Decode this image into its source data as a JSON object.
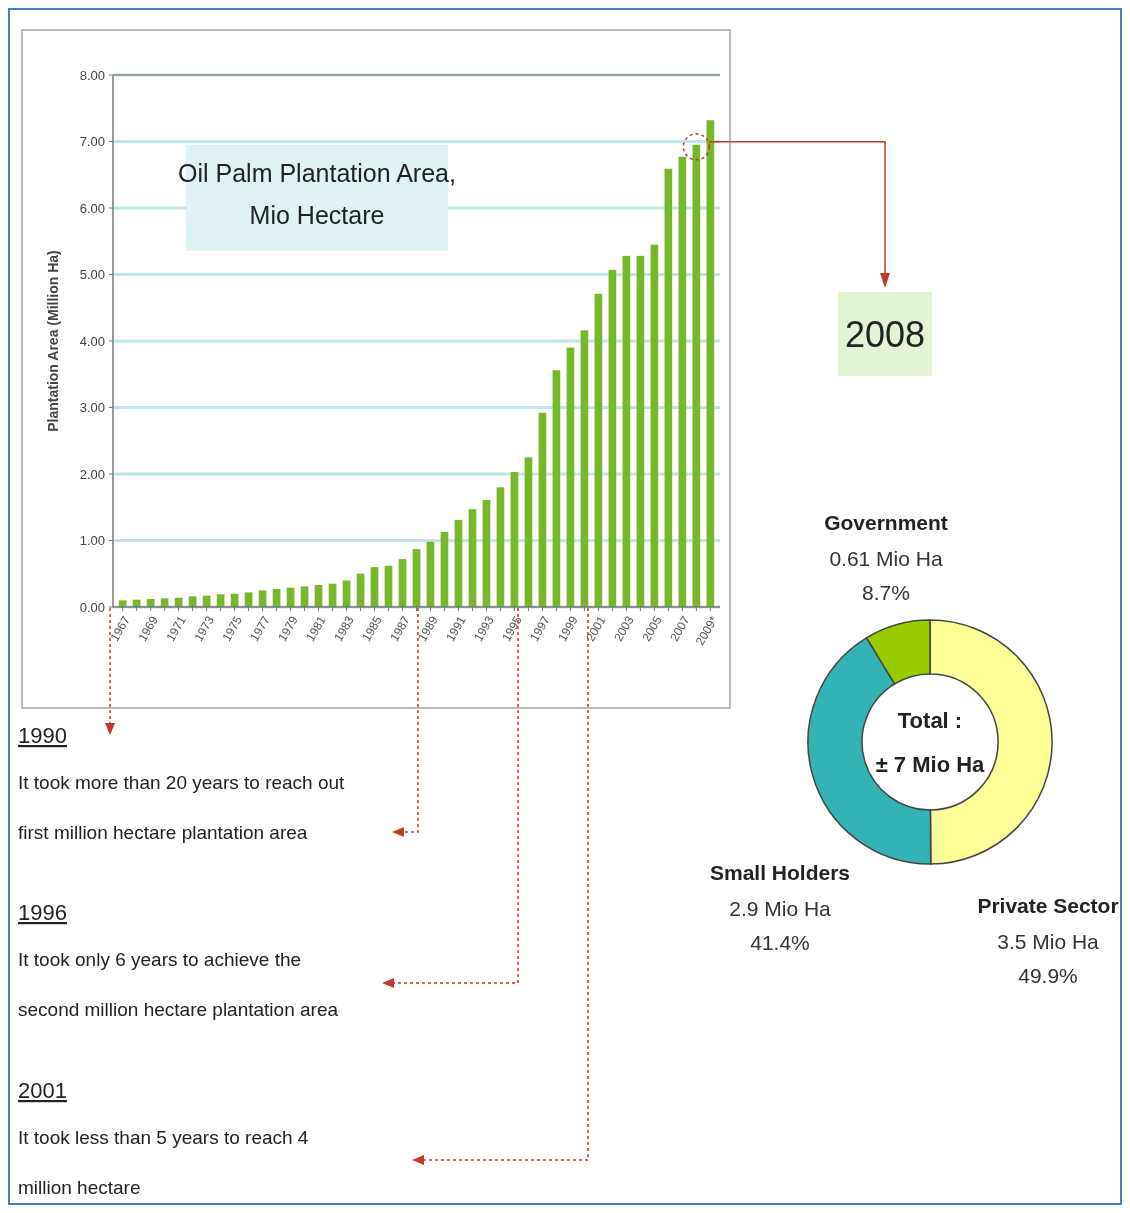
{
  "chart_data": [
    {
      "type": "bar",
      "title": "Oil Palm Plantation Area, Mio Hectare",
      "ylabel": "Plantation Area (Million Ha)",
      "categories": [
        "1967",
        null,
        "1969",
        null,
        "1971",
        null,
        "1973",
        null,
        "1975",
        null,
        "1977",
        null,
        "1979",
        null,
        "1981",
        null,
        "1983",
        null,
        "1985",
        null,
        "1987",
        null,
        "1989",
        null,
        "1991",
        null,
        "1993",
        null,
        "1995",
        null,
        "1997",
        null,
        "1999",
        null,
        "2001",
        null,
        "2003",
        null,
        "2005",
        null,
        "2007",
        null,
        "2009*"
      ],
      "values": [
        0.1,
        0.11,
        0.12,
        0.13,
        0.14,
        0.16,
        0.17,
        0.19,
        0.2,
        0.22,
        0.25,
        0.27,
        0.29,
        0.31,
        0.33,
        0.35,
        0.4,
        0.5,
        0.6,
        0.62,
        0.72,
        0.87,
        0.98,
        1.13,
        1.31,
        1.47,
        1.61,
        1.8,
        2.03,
        2.25,
        2.92,
        3.56,
        3.9,
        4.16,
        4.71,
        5.07,
        5.28,
        5.28,
        5.45,
        6.59,
        6.77,
        6.95,
        7.32
      ],
      "color": "#77b82a",
      "ylim": [
        0,
        8
      ],
      "yticks": [
        {
          "value": 0,
          "label": "0.00"
        },
        {
          "value": 1,
          "label": "1.00"
        },
        {
          "value": 2,
          "label": "2.00"
        },
        {
          "value": 3,
          "label": "3.00"
        },
        {
          "value": 4,
          "label": "4.00"
        },
        {
          "value": 5,
          "label": "5.00"
        },
        {
          "value": 6,
          "label": "6.00"
        },
        {
          "value": 7,
          "label": "7.00"
        },
        {
          "value": 8,
          "label": "8.00"
        }
      ],
      "grid": "y",
      "annotations": [
        "1990",
        "It took more than 20 years to reach out first million hectare plantation area",
        "1996",
        "It took only 6 years to achieve the second million hectare plantation area",
        "2001",
        "It took less than 5 years to reach 4 million hectare"
      ]
    },
    {
      "type": "donut",
      "title": "2008",
      "categories": [
        "Private Sector",
        "Small Holders",
        "Government"
      ],
      "values": [
        49.9,
        41.4,
        8.7
      ],
      "colors": [
        "#ffff99",
        "#33b3b3",
        "#99cc00"
      ],
      "value_labels": [
        "3.5 Mio Ha\n49.9%",
        "2.9 Mio Ha\n41.4%",
        "0.61 Mio Ha\n8.7%"
      ],
      "annotations": [
        "Total :",
        "± 7 Mio Ha"
      ]
    }
  ]
}
